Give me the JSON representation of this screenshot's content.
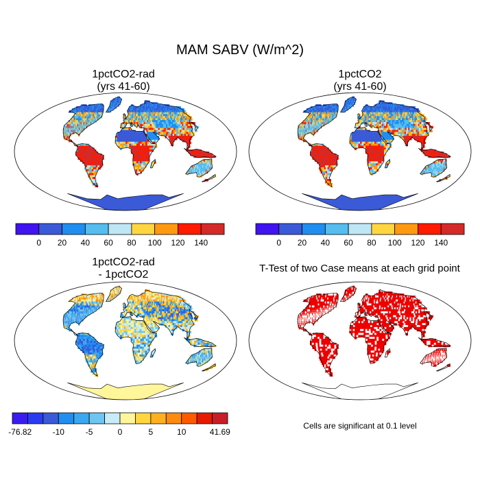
{
  "title": "MAM SABV (W/m^2)",
  "panels": [
    {
      "title": "1pctCO2-rad\n(yrs 41-60)",
      "kind": "absolute"
    },
    {
      "title": "1pctCO2\n(yrs 41-60)",
      "kind": "absolute"
    },
    {
      "title": "1pctCO2-rad\n- 1pctCO2",
      "kind": "difference"
    },
    {
      "title": "T-Test of two Case means at each grid point",
      "kind": "significance"
    }
  ],
  "colorbar_abs": {
    "colors": [
      "#3f14f0",
      "#3a5ad8",
      "#1f8ef0",
      "#55bdf0",
      "#bfe6f5",
      "#ffd640",
      "#ff9a10",
      "#ff1a00",
      "#d42a28"
    ],
    "labels": [
      "0",
      "20",
      "40",
      "60",
      "80",
      "100",
      "120",
      "140"
    ]
  },
  "colorbar_diff": {
    "colors": [
      "#3a1cf0",
      "#2b3cf0",
      "#3a5ad8",
      "#1f8ef0",
      "#3aa8f0",
      "#6ec6f0",
      "#c8ecf7",
      "#fff59a",
      "#ffd640",
      "#ffb020",
      "#ff8a10",
      "#ff5a00",
      "#e61a00",
      "#c81e2a"
    ],
    "labels": [
      "-76.82",
      "-10",
      "-5",
      "0",
      "5",
      "10",
      "41.69"
    ]
  },
  "significance_note": "Cells are significant at 0.1 level",
  "colors": {
    "ocean": "#ffffff",
    "significant": "#ee0000",
    "antarctica_abs": "#3a5ad8",
    "antarctica_diff": "#fff59a"
  }
}
